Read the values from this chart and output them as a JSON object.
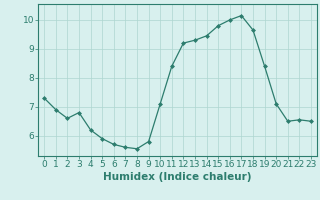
{
  "x": [
    0,
    1,
    2,
    3,
    4,
    5,
    6,
    7,
    8,
    9,
    10,
    11,
    12,
    13,
    14,
    15,
    16,
    17,
    18,
    19,
    20,
    21,
    22,
    23
  ],
  "y": [
    7.3,
    6.9,
    6.6,
    6.8,
    6.2,
    5.9,
    5.7,
    5.6,
    5.55,
    5.8,
    7.1,
    8.4,
    9.2,
    9.3,
    9.45,
    9.8,
    10.0,
    10.15,
    9.65,
    8.4,
    7.1,
    6.5,
    6.55,
    6.5
  ],
  "line_color": "#2d7d6e",
  "marker": "D",
  "marker_size": 2.0,
  "bg_color": "#d8f0ee",
  "grid_color": "#aed6d0",
  "xlabel": "Humidex (Indice chaleur)",
  "xlabel_fontsize": 7.5,
  "tick_fontsize": 6.5,
  "ylim": [
    5.3,
    10.55
  ],
  "xlim": [
    -0.5,
    23.5
  ],
  "yticks": [
    6,
    7,
    8,
    9,
    10
  ],
  "xticks": [
    0,
    1,
    2,
    3,
    4,
    5,
    6,
    7,
    8,
    9,
    10,
    11,
    12,
    13,
    14,
    15,
    16,
    17,
    18,
    19,
    20,
    21,
    22,
    23
  ]
}
